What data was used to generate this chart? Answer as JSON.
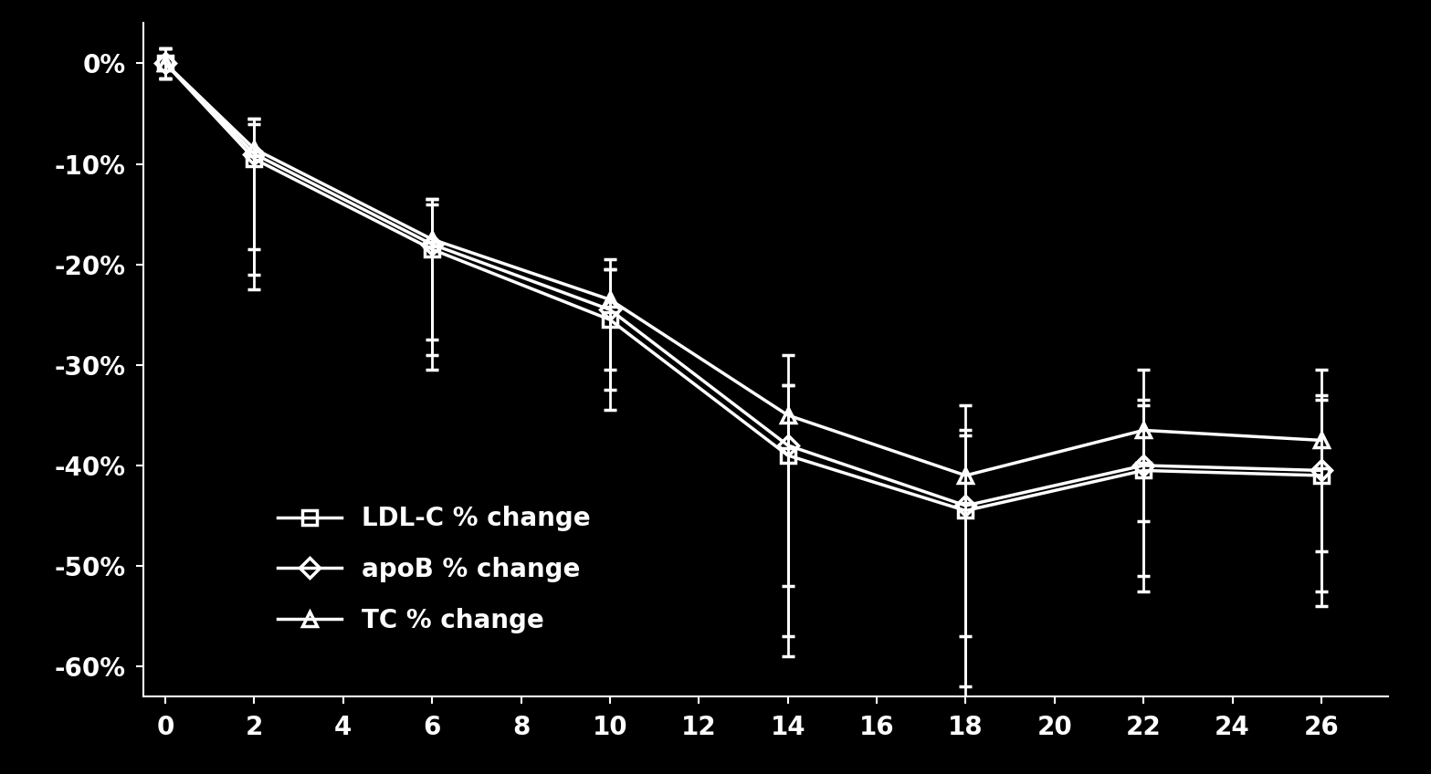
{
  "background_color": "#000000",
  "text_color": "#ffffff",
  "line_color": "#ffffff",
  "xlim": [
    -0.5,
    27.5
  ],
  "ylim": [
    -63,
    4
  ],
  "xticks": [
    0,
    2,
    4,
    6,
    8,
    10,
    12,
    14,
    16,
    18,
    20,
    22,
    24,
    26
  ],
  "yticks": [
    0,
    -10,
    -20,
    -30,
    -40,
    -50,
    -60
  ],
  "ytick_labels": [
    "0%",
    "-10%",
    "-20%",
    "-30%",
    "-40%",
    "-50%",
    "-60%"
  ],
  "ldlc_x": [
    0,
    2,
    6,
    10,
    14,
    18,
    22,
    26
  ],
  "ldlc_y": [
    0,
    -9.5,
    -18.5,
    -25.5,
    -39,
    -44.5,
    -40.5,
    -41
  ],
  "ldlc_yerr_lo": [
    1.5,
    13,
    12,
    9,
    20,
    19,
    12,
    13
  ],
  "ldlc_yerr_hi": [
    1.5,
    4,
    5,
    5,
    7,
    8,
    7,
    8
  ],
  "apob_x": [
    0,
    2,
    6,
    10,
    14,
    18,
    22,
    26
  ],
  "apob_y": [
    0,
    -9.0,
    -18.0,
    -24.5,
    -38,
    -44.0,
    -40.0,
    -40.5
  ],
  "apob_yerr_lo": [
    1.5,
    12,
    11,
    8,
    19,
    18,
    11,
    12
  ],
  "apob_yerr_hi": [
    1.5,
    3,
    4,
    4,
    6,
    7,
    6,
    7
  ],
  "tc_x": [
    0,
    2,
    6,
    10,
    14,
    18,
    22,
    26
  ],
  "tc_y": [
    0,
    -8.5,
    -17.5,
    -23.5,
    -35,
    -41,
    -36.5,
    -37.5
  ],
  "tc_yerr_lo": [
    1.5,
    10,
    10,
    7,
    17,
    16,
    9,
    11
  ],
  "tc_yerr_hi": [
    1.5,
    3,
    4,
    4,
    6,
    7,
    6,
    7
  ],
  "legend_labels": [
    "LDL-C % change",
    "apoB % change",
    "TC % change"
  ],
  "legend_markers": [
    "s",
    "D",
    "^"
  ],
  "fontsize_ticks": 20,
  "fontsize_legend": 20,
  "linewidth": 2.5,
  "markersize": 11,
  "capsize": 5,
  "capthick": 2.5,
  "elinewidth": 2.0
}
